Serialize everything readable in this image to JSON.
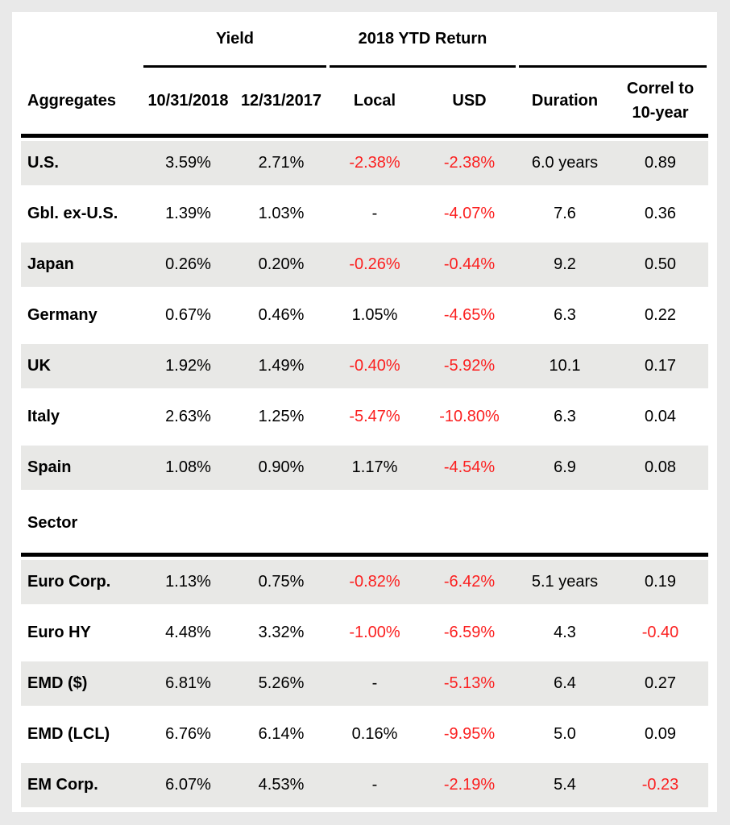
{
  "colors": {
    "negative": "#fb2020",
    "stripe": "#e8e8e6",
    "page_background": "#e9e9e9",
    "line": "#000000"
  },
  "chart_data": {
    "type": "table",
    "group_headers": {
      "yield": "Yield",
      "ytd_return": "2018 YTD Return"
    },
    "columns": {
      "aggregates": "Aggregates",
      "yield_current": "10/31/2018",
      "yield_prior": "12/31/2017",
      "local": "Local",
      "usd": "USD",
      "duration": "Duration",
      "correl": "Correl to\n10-year"
    },
    "aggregates": {
      "rows": [
        {
          "label": "U.S.",
          "values": [
            "3.59%",
            "2.71%",
            "-2.38%",
            "-2.38%",
            "6.0 years",
            "0.89"
          ]
        },
        {
          "label": "Gbl. ex-U.S.",
          "values": [
            "1.39%",
            "1.03%",
            "-",
            "-4.07%",
            "7.6",
            "0.36"
          ]
        },
        {
          "label": "Japan",
          "values": [
            "0.26%",
            "0.20%",
            "-0.26%",
            "-0.44%",
            "9.2",
            "0.50"
          ]
        },
        {
          "label": "Germany",
          "values": [
            "0.67%",
            "0.46%",
            "1.05%",
            "-4.65%",
            "6.3",
            "0.22"
          ]
        },
        {
          "label": "UK",
          "values": [
            "1.92%",
            "1.49%",
            "-0.40%",
            "-5.92%",
            "10.1",
            "0.17"
          ]
        },
        {
          "label": "Italy",
          "values": [
            "2.63%",
            "1.25%",
            "-5.47%",
            "-10.80%",
            "6.3",
            "0.04"
          ]
        },
        {
          "label": "Spain",
          "values": [
            "1.08%",
            "0.90%",
            "1.17%",
            "-4.54%",
            "6.9",
            "0.08"
          ]
        }
      ]
    },
    "section_label": "Sector",
    "sector": {
      "rows": [
        {
          "label": "Euro Corp.",
          "values": [
            "1.13%",
            "0.75%",
            "-0.82%",
            "-6.42%",
            "5.1 years",
            "0.19"
          ]
        },
        {
          "label": "Euro HY",
          "values": [
            "4.48%",
            "3.32%",
            "-1.00%",
            "-6.59%",
            "4.3",
            "-0.40"
          ]
        },
        {
          "label": "EMD ($)",
          "values": [
            "6.81%",
            "5.26%",
            "-",
            "-5.13%",
            "6.4",
            "0.27"
          ]
        },
        {
          "label": "EMD (LCL)",
          "values": [
            "6.76%",
            "6.14%",
            "0.16%",
            "-9.95%",
            "5.0",
            "0.09"
          ]
        },
        {
          "label": "EM Corp.",
          "values": [
            "6.07%",
            "4.53%",
            "-",
            "-2.19%",
            "5.4",
            "-0.23"
          ]
        }
      ]
    }
  }
}
